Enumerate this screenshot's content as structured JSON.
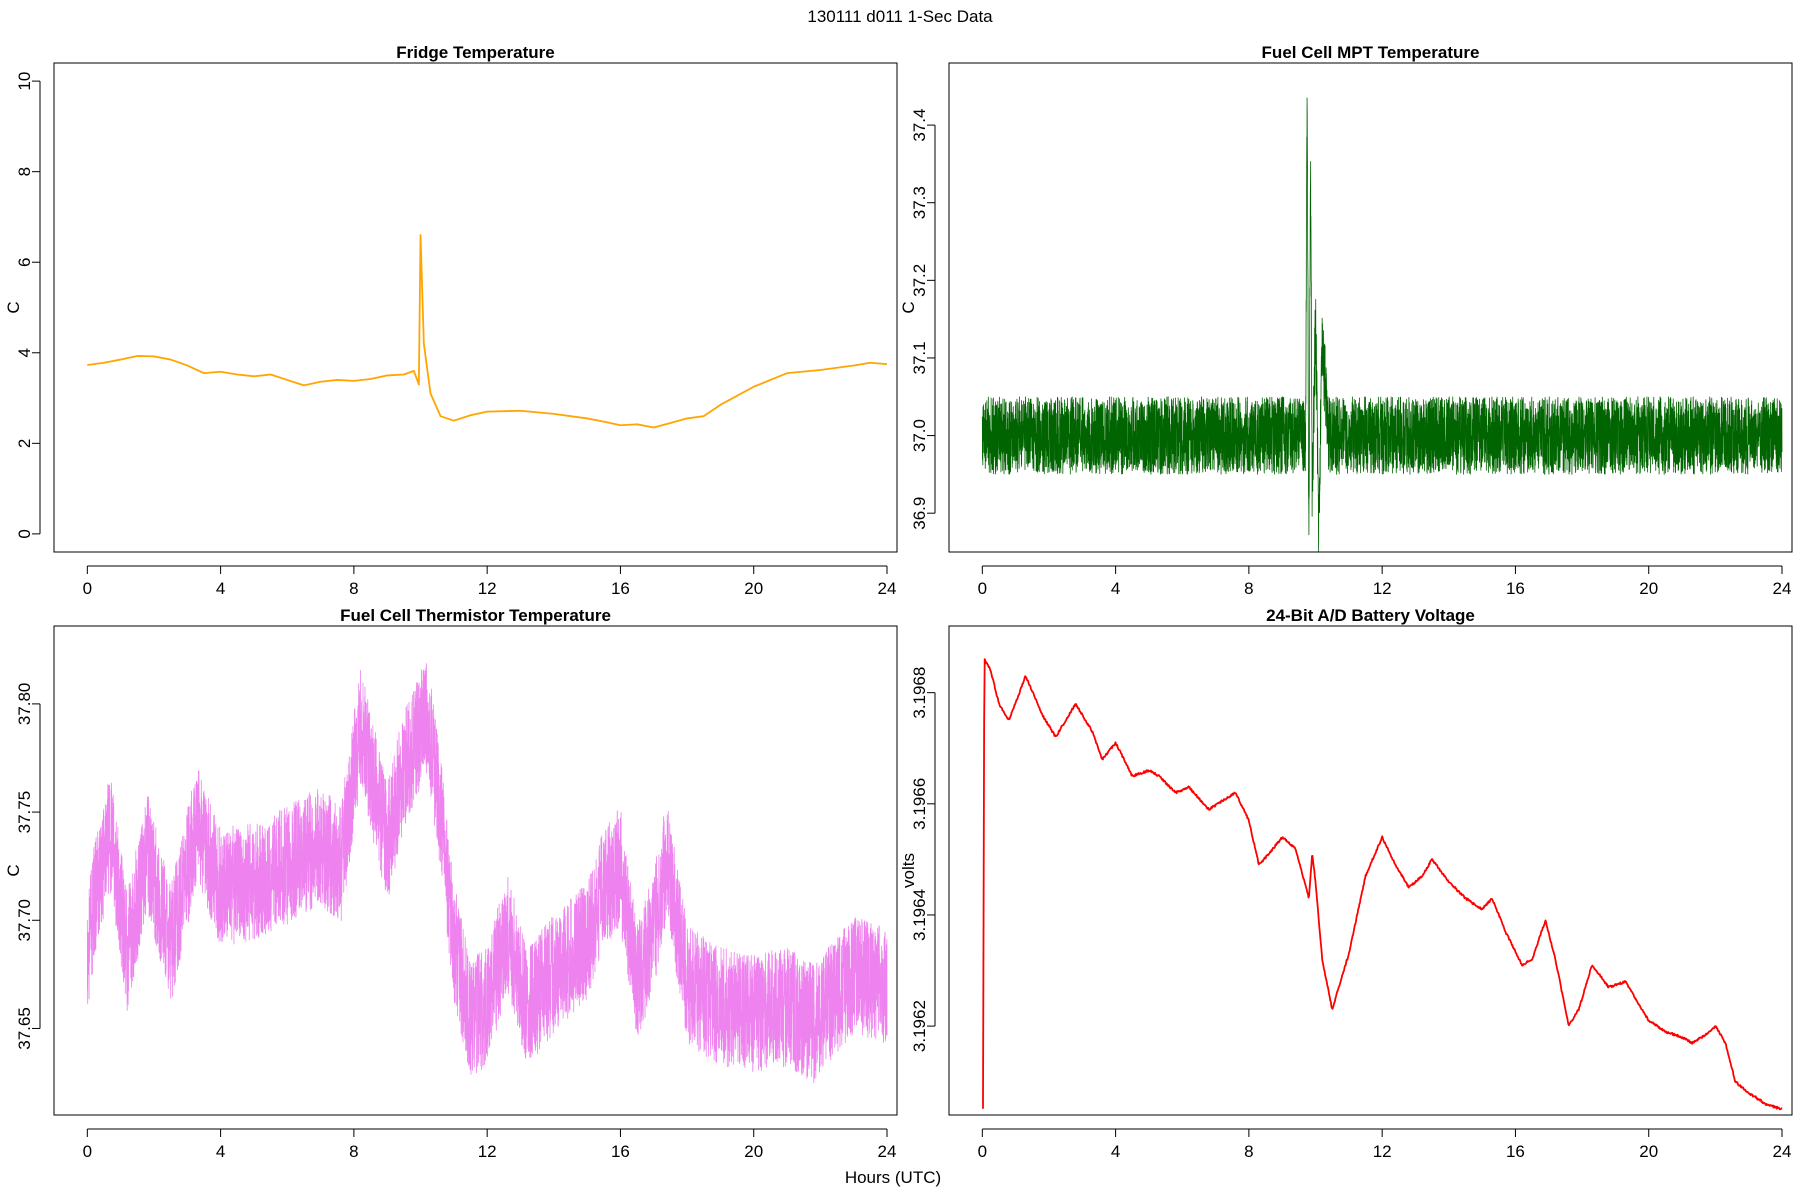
{
  "figure": {
    "title": "130111   d011   1-Sec Data",
    "xlabel": "Hours (UTC)"
  },
  "chart_data": [
    {
      "type": "line",
      "title": "Fridge Temperature",
      "ylabel": "C",
      "xlim": [
        -1,
        24.3
      ],
      "ylim": [
        -0.4,
        10.4
      ],
      "xticks": [
        0,
        4,
        8,
        12,
        16,
        20,
        24
      ],
      "xtick_labels": [
        "0",
        "4",
        "8",
        "12",
        "16",
        "20",
        "24"
      ],
      "yticks": [
        0,
        2,
        4,
        6,
        8,
        10
      ],
      "ytick_labels": [
        "0",
        "2",
        "4",
        "6",
        "8",
        "10"
      ],
      "color": "#FFA500",
      "noise": 0,
      "x": [
        0,
        0.5,
        1,
        1.5,
        2,
        2.5,
        3,
        3.5,
        4,
        4.5,
        5,
        5.5,
        6,
        6.5,
        7,
        7.5,
        8,
        8.5,
        9,
        9.5,
        9.8,
        9.95,
        10.0,
        10.1,
        10.3,
        10.6,
        11,
        11.5,
        12,
        13,
        14,
        15,
        15.5,
        16,
        16.5,
        17,
        17.5,
        18,
        18.5,
        19,
        20,
        21,
        22,
        23,
        23.5,
        24
      ],
      "y": [
        3.73,
        3.78,
        3.85,
        3.93,
        3.92,
        3.85,
        3.72,
        3.55,
        3.58,
        3.52,
        3.48,
        3.52,
        3.4,
        3.28,
        3.36,
        3.4,
        3.38,
        3.42,
        3.5,
        3.52,
        3.6,
        3.3,
        6.6,
        4.2,
        3.1,
        2.6,
        2.5,
        2.62,
        2.7,
        2.72,
        2.65,
        2.55,
        2.48,
        2.4,
        2.42,
        2.35,
        2.45,
        2.55,
        2.6,
        2.85,
        3.25,
        3.55,
        3.62,
        3.72,
        3.78,
        3.75
      ]
    },
    {
      "type": "line",
      "title": "Fuel Cell MPT Temperature",
      "ylabel": "C",
      "xlim": [
        -1,
        24.3
      ],
      "ylim": [
        36.85,
        37.48
      ],
      "xticks": [
        0,
        4,
        8,
        12,
        16,
        20,
        24
      ],
      "xtick_labels": [
        "0",
        "4",
        "8",
        "12",
        "16",
        "20",
        "24"
      ],
      "yticks": [
        36.9,
        37.0,
        37.1,
        37.2,
        37.3,
        37.4
      ],
      "ytick_labels": [
        "36.9",
        "37.0",
        "37.1",
        "37.2",
        "37.3",
        "37.4"
      ],
      "color": "#006400",
      "noise": 0.1,
      "x": [
        0,
        4,
        8,
        9.5,
        9.7,
        9.75,
        9.8,
        9.85,
        9.9,
        10.0,
        10.1,
        10.2,
        10.4,
        12,
        16,
        20,
        24
      ],
      "y": [
        37.0,
        37.0,
        37.0,
        37.0,
        37.0,
        37.45,
        36.85,
        37.36,
        36.92,
        37.15,
        36.88,
        37.12,
        37.0,
        37.0,
        37.0,
        37.0,
        37.0
      ]
    },
    {
      "type": "line",
      "title": "Fuel Cell Thermistor Temperature",
      "ylabel": "C",
      "xlim": [
        -1,
        24.3
      ],
      "ylim": [
        37.61,
        37.836
      ],
      "xticks": [
        0,
        4,
        8,
        12,
        16,
        20,
        24
      ],
      "xtick_labels": [
        "0",
        "4",
        "8",
        "12",
        "16",
        "20",
        "24"
      ],
      "yticks": [
        37.65,
        37.7,
        37.75,
        37.8
      ],
      "ytick_labels": [
        "37.65",
        "37.70",
        "37.75",
        "37.80"
      ],
      "color": "#EE82EE",
      "noise": 0.055,
      "x": [
        0,
        0.3,
        0.7,
        1.2,
        1.8,
        2.5,
        3.3,
        4,
        5,
        6,
        7,
        7.6,
        8.2,
        9,
        9.5,
        10.2,
        10.6,
        11,
        11.5,
        12,
        12.6,
        13.2,
        14,
        15,
        15.5,
        16,
        16.5,
        17,
        17.4,
        18,
        19,
        20,
        21,
        21.8,
        22.5,
        23,
        24
      ],
      "y": [
        37.685,
        37.718,
        37.74,
        37.685,
        37.732,
        37.688,
        37.745,
        37.715,
        37.718,
        37.725,
        37.735,
        37.725,
        37.79,
        37.735,
        37.77,
        37.795,
        37.75,
        37.69,
        37.655,
        37.66,
        37.695,
        37.66,
        37.675,
        37.69,
        37.715,
        37.725,
        37.67,
        37.695,
        37.73,
        37.67,
        37.66,
        37.657,
        37.66,
        37.652,
        37.665,
        37.675,
        37.67
      ]
    },
    {
      "type": "line",
      "title": "24-Bit A/D Battery Voltage",
      "ylabel": "volts",
      "xlim": [
        -1,
        24.3
      ],
      "ylim": [
        3.19604,
        3.19692
      ],
      "xticks": [
        0,
        4,
        8,
        12,
        16,
        20,
        24
      ],
      "xtick_labels": [
        "0",
        "4",
        "8",
        "12",
        "16",
        "20",
        "24"
      ],
      "yticks": [
        3.1962,
        3.1964,
        3.1966,
        3.1968
      ],
      "ytick_labels": [
        "3.1962",
        "3.1964",
        "3.1966",
        "3.1968"
      ],
      "color": "#FF0000",
      "noise": 4e-06,
      "x": [
        0.02,
        0.06,
        0.25,
        0.5,
        0.8,
        1.3,
        1.8,
        2.2,
        2.8,
        3.3,
        3.6,
        4.0,
        4.5,
        5.0,
        5.3,
        5.8,
        6.2,
        6.8,
        7.6,
        8.0,
        8.3,
        8.6,
        9.0,
        9.4,
        9.8,
        9.9,
        10.0,
        10.2,
        10.5,
        11.0,
        11.5,
        12.0,
        12.4,
        12.8,
        13.2,
        13.5,
        14.0,
        14.5,
        15.0,
        15.3,
        15.7,
        16.2,
        16.5,
        16.9,
        17.2,
        17.6,
        17.9,
        18.3,
        18.8,
        19.3,
        19.7,
        20.0,
        20.5,
        21.0,
        21.3,
        21.6,
        22.0,
        22.3,
        22.6,
        23.0,
        23.5,
        24.0
      ],
      "y": [
        3.19605,
        3.19686,
        3.19684,
        3.19678,
        3.19675,
        3.19683,
        3.19676,
        3.19672,
        3.19678,
        3.19673,
        3.19668,
        3.19671,
        3.19665,
        3.19666,
        3.19665,
        3.19662,
        3.19663,
        3.19659,
        3.19662,
        3.19657,
        3.19649,
        3.19651,
        3.19654,
        3.19652,
        3.19643,
        3.19651,
        3.19646,
        3.19632,
        3.19623,
        3.19633,
        3.19647,
        3.19654,
        3.19649,
        3.19645,
        3.19647,
        3.1965,
        3.19646,
        3.19643,
        3.19641,
        3.19643,
        3.19637,
        3.19631,
        3.19632,
        3.19639,
        3.19632,
        3.1962,
        3.19623,
        3.19631,
        3.19627,
        3.19628,
        3.19624,
        3.19621,
        3.19619,
        3.19618,
        3.19617,
        3.19618,
        3.1962,
        3.19617,
        3.1961,
        3.19608,
        3.19606,
        3.19605
      ]
    }
  ]
}
